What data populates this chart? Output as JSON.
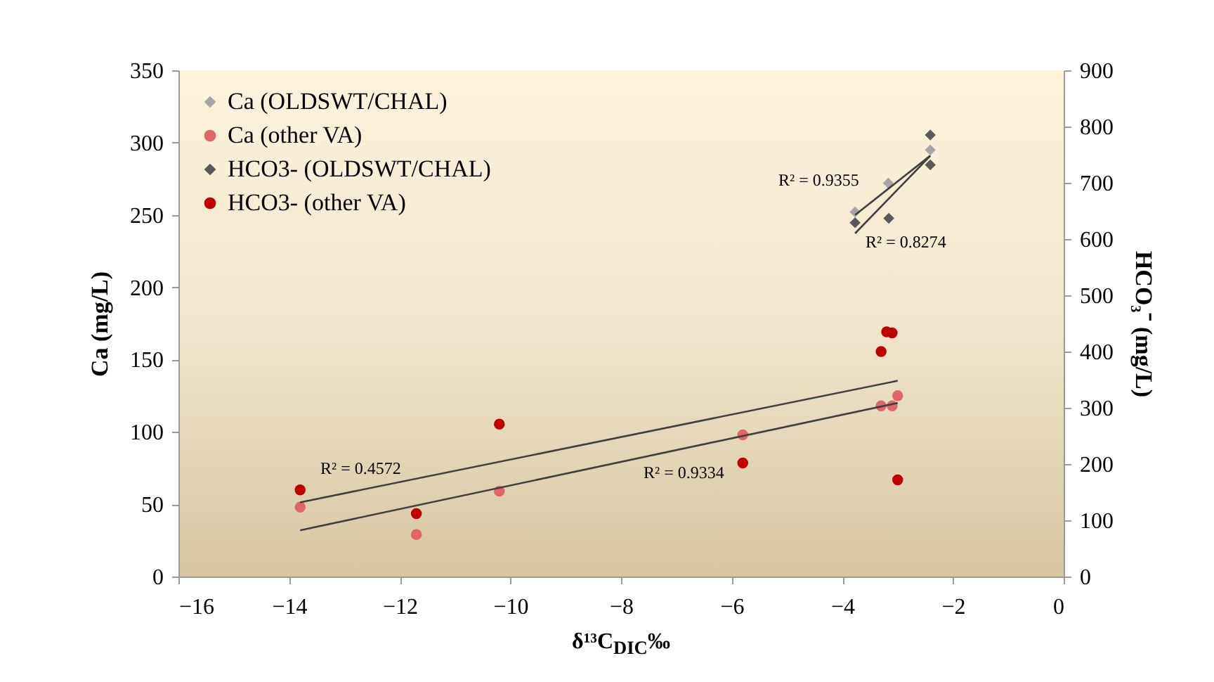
{
  "chart_data": {
    "type": "scatter",
    "xlabel": "δ¹³C$_{DIC}$‰",
    "ylabel": "Ca  (mg/L)",
    "y2label": "HCO₃⁻ (mg/L)",
    "xlim": [
      -16,
      0
    ],
    "xticks": [
      -16,
      -14,
      -12,
      -10,
      -8,
      -6,
      -4,
      -2,
      0
    ],
    "ylim": [
      0,
      350
    ],
    "yticks": [
      0,
      50,
      100,
      150,
      200,
      250,
      300,
      350
    ],
    "y2lim": [
      0,
      900
    ],
    "y2ticks": [
      0,
      100,
      200,
      300,
      400,
      500,
      600,
      700,
      800,
      900
    ],
    "grid": false,
    "legend": "top left",
    "series": [
      {
        "name": "Ca (OLDSWT/CHAL)",
        "marker": "diamond",
        "color": "#a6a6a6",
        "x": [
          -3.77,
          -3.17,
          -2.41
        ],
        "values": [
          252,
          272,
          295
        ]
      },
      {
        "name": "Ca (other VA)",
        "marker": "circle",
        "color": "#e06666",
        "x": [
          -13.8,
          -11.7,
          -10.2,
          -5.8,
          -3.3,
          -3.1,
          -3.0
        ],
        "values": [
          48,
          29,
          59,
          98,
          118,
          118,
          125
        ]
      },
      {
        "name": "HCO3- (OLDSWT/CHAL)",
        "marker": "diamond",
        "axis": "y2",
        "color": "#595959",
        "x": [
          -3.77,
          -3.16,
          -2.41,
          -2.41
        ],
        "values": [
          629,
          637,
          785,
          732
        ]
      },
      {
        "name": "HCO3- (other VA)",
        "marker": "circle",
        "axis": "y2",
        "color": "#c00000",
        "x": [
          -13.8,
          -11.7,
          -10.2,
          -5.8,
          -3.3,
          -3.2,
          -3.1,
          -3.0
        ],
        "values": [
          154,
          112,
          271,
          202,
          400,
          435,
          433,
          172
        ]
      },
      {
        "type": "line",
        "color": "#404040",
        "x": [
          -3.77,
          -2.41
        ],
        "values": [
          250,
          291
        ]
      },
      {
        "type": "line",
        "color": "#404040",
        "x": [
          -13.8,
          -3.0
        ],
        "values": [
          32,
          120
        ]
      },
      {
        "type": "line",
        "axis": "y2",
        "color": "#404040",
        "x": [
          -3.77,
          -2.41
        ],
        "values": [
          610,
          748
        ]
      },
      {
        "type": "line",
        "axis": "y2",
        "color": "#404040",
        "x": [
          -13.8,
          -3.0
        ],
        "values": [
          132,
          348
        ]
      }
    ],
    "annotations": [
      "R² = 0.4572",
      "R² = 0.9334",
      "R² = 0.9355",
      "R² = 0.8274"
    ]
  }
}
